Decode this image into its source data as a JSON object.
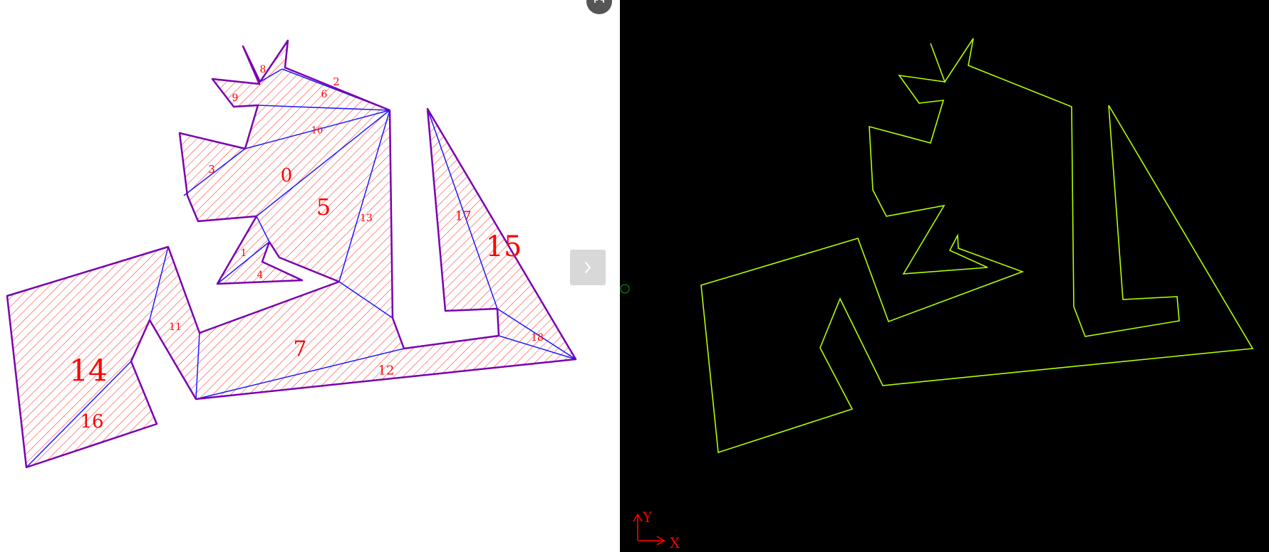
{
  "left_view": {
    "labels": [
      "0",
      "1",
      "2",
      "3",
      "4",
      "5",
      "6",
      "7",
      "8",
      "9",
      "10",
      "11",
      "12",
      "13",
      "14",
      "15",
      "16",
      "17",
      "18"
    ]
  },
  "controls": {
    "next_icon": "chevron-right-icon",
    "expand_icon": "expand-icon"
  },
  "right_view": {
    "axis": {
      "x_label": "X",
      "y_label": "Y"
    }
  },
  "colors": {
    "hatch": "#ff0000",
    "edge": "#7a00b0",
    "inner_edge": "#1a1aff",
    "outline": "#b0ff00",
    "axis": "#ff0000",
    "origin_marker": "#00aa00"
  }
}
